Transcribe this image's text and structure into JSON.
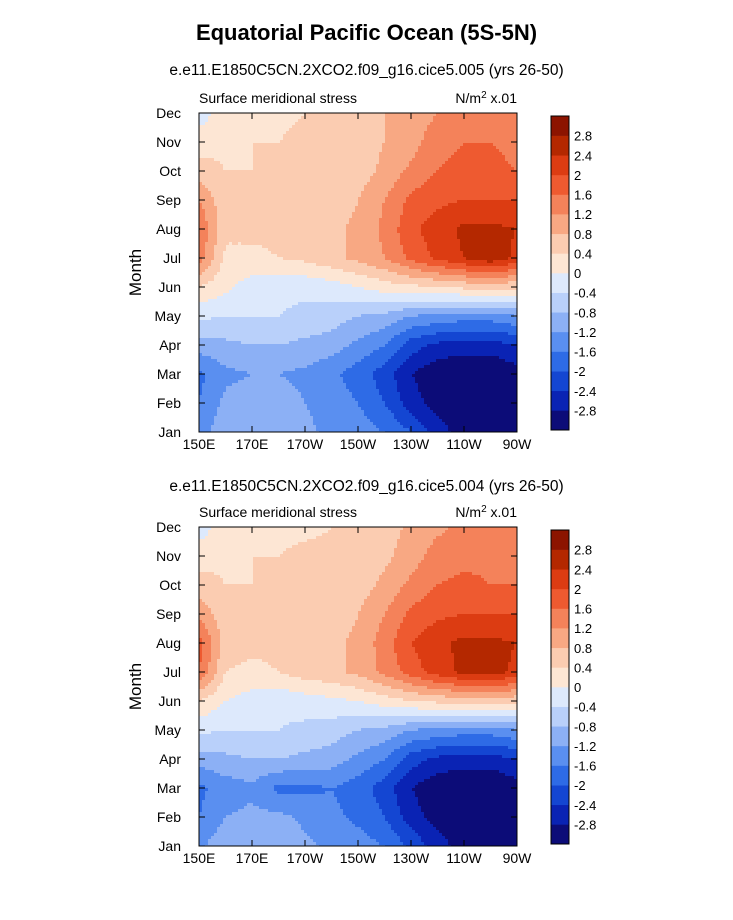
{
  "title": "Equatorial Pacific Ocean (5S-5N)",
  "colors": [
    "#0c0c78",
    "#0a23b4",
    "#1446d2",
    "#2e6be6",
    "#5a8ff0",
    "#8cb0f5",
    "#b9d0fa",
    "#dde9fc",
    "#fde6d4",
    "#fbccb1",
    "#f8a883",
    "#f4825a",
    "#ee5a30",
    "#dc3c12",
    "#b42800",
    "#8c1400"
  ],
  "chart_data": [
    {
      "type": "heatmap",
      "title": "e.e11.E1850C5CN.2XCO2.f09_g16.cice5.005 (yrs 26-50)",
      "left_label": "Surface meridional stress",
      "right_label": "N/m",
      "right_label_sup": "2",
      "right_label_tail": " x.01",
      "ylabel": "Month",
      "x_ticks": [
        "150E",
        "170E",
        "170W",
        "150W",
        "130W",
        "110W",
        "90W"
      ],
      "y_ticks": [
        "Jan",
        "Feb",
        "Mar",
        "Apr",
        "May",
        "Jun",
        "Jul",
        "Aug",
        "Sep",
        "Oct",
        "Nov",
        "Dec"
      ],
      "colorbar_labels": [
        "2.8",
        "2.4",
        "2",
        "1.6",
        "1.2",
        "0.8",
        "0.4",
        "0",
        "-0.4",
        "-0.8",
        "-1.2",
        "-1.6",
        "-2",
        "-2.4",
        "-2.8"
      ],
      "x": [
        150,
        160,
        170,
        180,
        190,
        200,
        210,
        220,
        230,
        240,
        250,
        260,
        270
      ],
      "months": [
        "Jan",
        "Feb",
        "Mar",
        "Apr",
        "May",
        "Jun",
        "Jul",
        "Aug",
        "Sep",
        "Oct",
        "Nov",
        "Dec"
      ],
      "values": [
        [
          -1.4,
          -0.9,
          -0.8,
          -0.9,
          -1.1,
          -1.3,
          -1.4,
          -1.6,
          -2.0,
          -2.6,
          -3.0,
          -3.0,
          -3.0
        ],
        [
          -1.6,
          -1.1,
          -1.0,
          -1.0,
          -1.2,
          -1.4,
          -1.6,
          -2.0,
          -2.6,
          -3.0,
          -3.1,
          -3.2,
          -3.2
        ],
        [
          -1.7,
          -1.3,
          -1.2,
          -1.2,
          -1.3,
          -1.5,
          -1.8,
          -2.2,
          -2.8,
          -3.1,
          -3.2,
          -3.2,
          -3.0
        ],
        [
          -1.0,
          -0.9,
          -0.8,
          -0.8,
          -0.9,
          -1.0,
          -1.3,
          -1.6,
          -2.2,
          -2.5,
          -2.6,
          -2.6,
          -2.4
        ],
        [
          -0.3,
          -0.4,
          -0.4,
          -0.4,
          -0.5,
          -0.6,
          -0.8,
          -0.9,
          -1.2,
          -1.3,
          -1.4,
          -1.4,
          -1.2
        ],
        [
          0.4,
          0.1,
          -0.2,
          -0.3,
          -0.3,
          -0.2,
          0.0,
          0.2,
          0.3,
          0.4,
          0.5,
          0.5,
          0.5
        ],
        [
          1.4,
          0.3,
          0.3,
          0.4,
          0.5,
          0.7,
          0.9,
          1.2,
          1.7,
          2.1,
          2.4,
          2.7,
          2.3
        ],
        [
          1.6,
          0.5,
          0.5,
          0.5,
          0.6,
          0.7,
          0.9,
          1.3,
          1.9,
          2.2,
          2.5,
          2.5,
          2.4
        ],
        [
          1.2,
          0.5,
          0.5,
          0.5,
          0.5,
          0.5,
          0.8,
          1.2,
          1.7,
          1.9,
          2.0,
          2.0,
          2.0
        ],
        [
          0.6,
          0.4,
          0.4,
          0.5,
          0.5,
          0.5,
          0.6,
          0.9,
          1.3,
          1.6,
          1.7,
          1.7,
          1.6
        ],
        [
          0.2,
          0.3,
          0.4,
          0.4,
          0.5,
          0.6,
          0.6,
          0.8,
          1.0,
          1.5,
          1.6,
          1.6,
          1.5
        ],
        [
          -0.2,
          0.2,
          0.3,
          0.3,
          0.4,
          0.5,
          0.6,
          0.8,
          0.9,
          1.2,
          1.3,
          1.4,
          1.2
        ]
      ],
      "xlim": [
        150,
        270
      ],
      "levels": [
        -2.8,
        -2.4,
        -2.0,
        -1.6,
        -1.2,
        -0.8,
        -0.4,
        0.0,
        0.4,
        0.8,
        1.2,
        1.6,
        2.0,
        2.4,
        2.8
      ]
    },
    {
      "type": "heatmap",
      "title": "e.e11.E1850C5CN.2XCO2.f09_g16.cice5.004 (yrs 26-50)",
      "left_label": "Surface meridional stress",
      "right_label": "N/m",
      "right_label_sup": "2",
      "right_label_tail": " x.01",
      "ylabel": "Month",
      "x_ticks": [
        "150E",
        "170E",
        "170W",
        "150W",
        "130W",
        "110W",
        "90W"
      ],
      "y_ticks": [
        "Jan",
        "Feb",
        "Mar",
        "Apr",
        "May",
        "Jun",
        "Jul",
        "Aug",
        "Sep",
        "Oct",
        "Nov",
        "Dec"
      ],
      "colorbar_labels": [
        "2.8",
        "2.4",
        "2",
        "1.6",
        "1.2",
        "0.8",
        "0.4",
        "0",
        "-0.4",
        "-0.8",
        "-1.2",
        "-1.6",
        "-2",
        "-2.4",
        "-2.8"
      ],
      "x": [
        150,
        160,
        170,
        180,
        190,
        200,
        210,
        220,
        230,
        240,
        250,
        260,
        270
      ],
      "months": [
        "Jan",
        "Feb",
        "Mar",
        "Apr",
        "May",
        "Jun",
        "Jul",
        "Aug",
        "Sep",
        "Oct",
        "Nov",
        "Dec"
      ],
      "values": [
        [
          -1.3,
          -0.9,
          -0.8,
          -0.9,
          -1.1,
          -1.3,
          -1.4,
          -1.6,
          -2.1,
          -2.6,
          -3.0,
          -3.0,
          -2.9
        ],
        [
          -1.6,
          -1.2,
          -1.1,
          -1.1,
          -1.3,
          -1.5,
          -1.7,
          -2.0,
          -2.6,
          -3.0,
          -3.1,
          -3.2,
          -3.2
        ],
        [
          -1.7,
          -1.4,
          -1.3,
          -1.7,
          -1.7,
          -1.6,
          -1.8,
          -2.2,
          -2.8,
          -3.1,
          -3.2,
          -3.2,
          -3.0
        ],
        [
          -1.0,
          -0.9,
          -0.8,
          -0.8,
          -0.9,
          -1.0,
          -1.3,
          -1.6,
          -2.2,
          -2.5,
          -2.6,
          -2.6,
          -2.4
        ],
        [
          -0.3,
          -0.4,
          -0.4,
          -0.4,
          -0.5,
          -0.6,
          -0.8,
          -0.9,
          -1.2,
          -1.3,
          -1.4,
          -1.4,
          -1.2
        ],
        [
          0.4,
          0.0,
          -0.2,
          -0.3,
          -0.2,
          -0.1,
          0.0,
          0.2,
          0.4,
          0.5,
          0.6,
          0.6,
          0.5
        ],
        [
          1.6,
          0.4,
          0.3,
          0.4,
          0.6,
          0.7,
          0.9,
          1.3,
          1.8,
          2.2,
          2.5,
          2.6,
          2.3
        ],
        [
          1.8,
          0.6,
          0.5,
          0.5,
          0.6,
          0.7,
          0.9,
          1.4,
          2.0,
          2.3,
          2.5,
          2.5,
          2.4
        ],
        [
          1.1,
          0.5,
          0.5,
          0.5,
          0.5,
          0.5,
          0.8,
          1.2,
          1.7,
          1.9,
          2.0,
          2.0,
          2.0
        ],
        [
          0.6,
          0.4,
          0.4,
          0.5,
          0.5,
          0.5,
          0.6,
          0.9,
          1.3,
          1.6,
          1.7,
          1.6,
          1.6
        ],
        [
          0.2,
          0.3,
          0.4,
          0.4,
          0.5,
          0.5,
          0.5,
          0.7,
          1.0,
          1.4,
          1.5,
          1.5,
          1.5
        ],
        [
          -0.2,
          0.2,
          0.3,
          0.3,
          0.3,
          0.4,
          0.5,
          0.6,
          0.9,
          1.1,
          1.3,
          1.4,
          1.2
        ]
      ],
      "xlim": [
        150,
        270
      ],
      "levels": [
        -2.8,
        -2.4,
        -2.0,
        -1.6,
        -1.2,
        -0.8,
        -0.4,
        0.0,
        0.4,
        0.8,
        1.2,
        1.6,
        2.0,
        2.4,
        2.8
      ]
    }
  ]
}
